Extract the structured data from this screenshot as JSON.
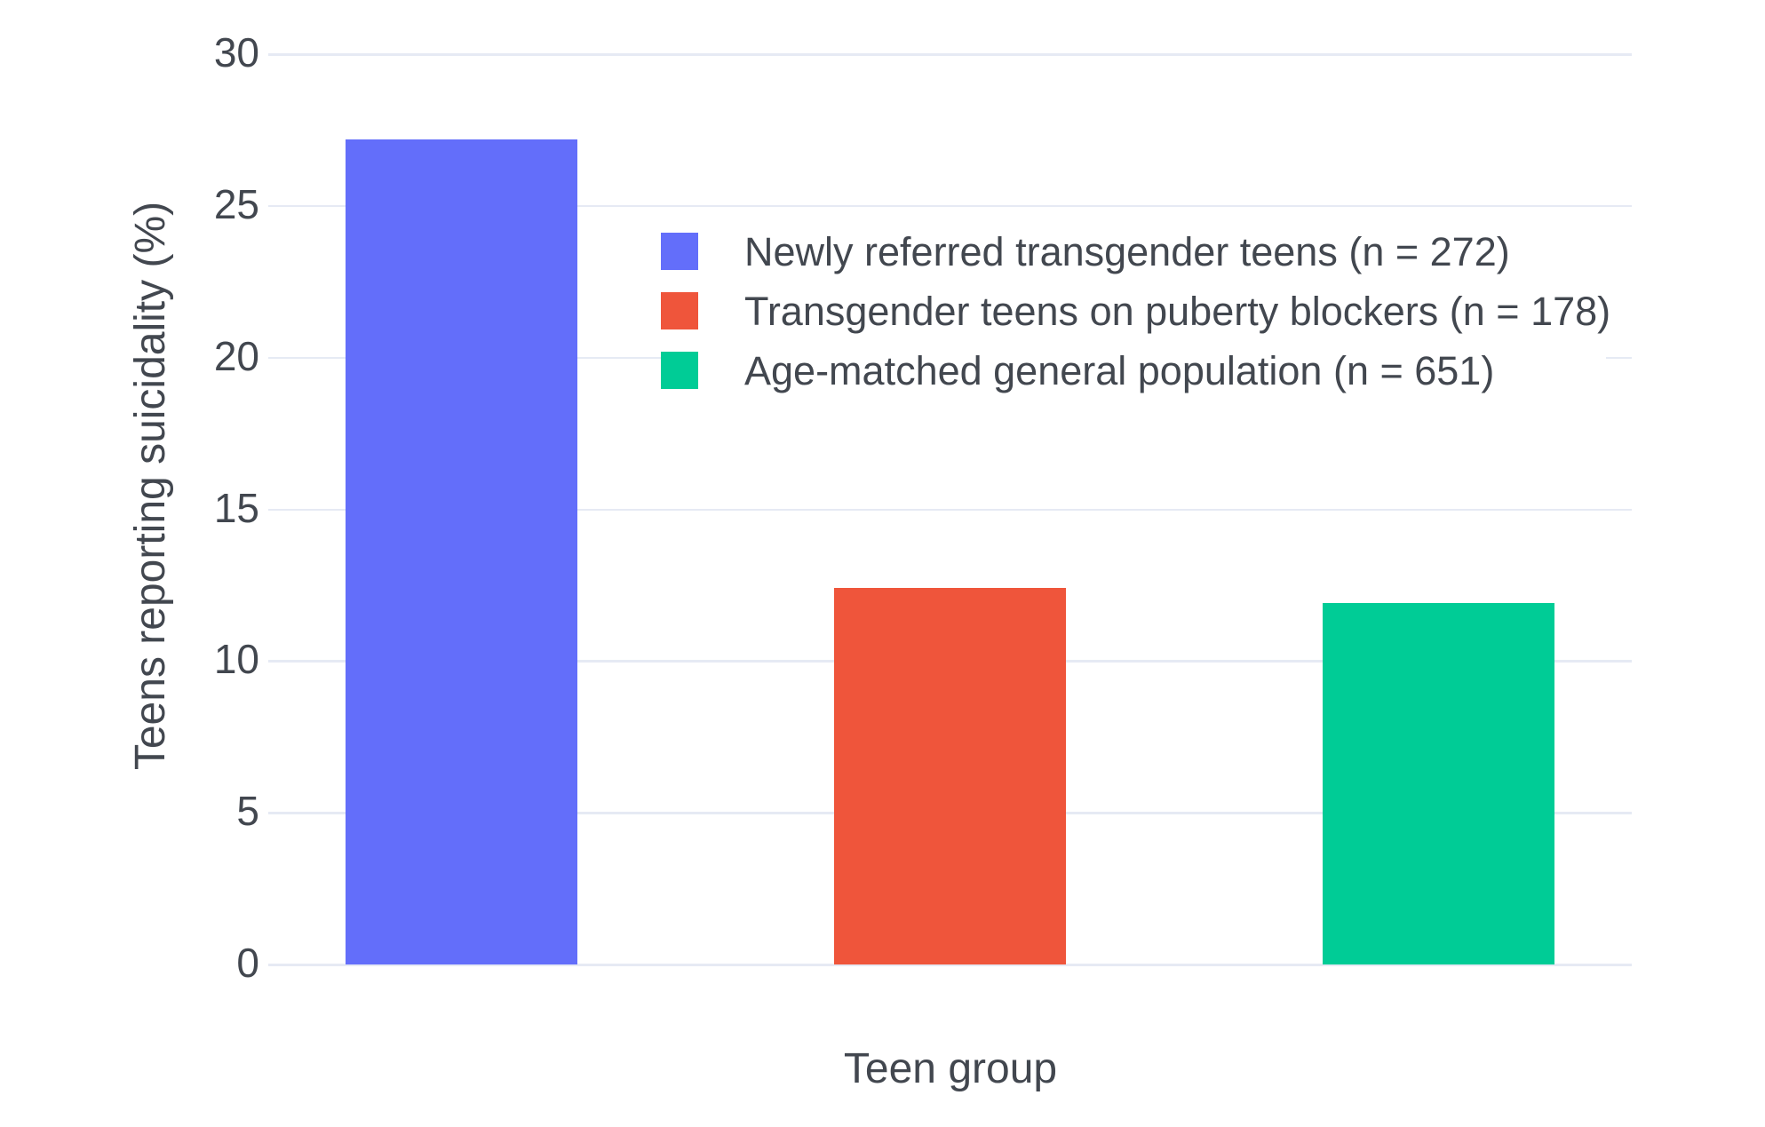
{
  "chart_data": {
    "type": "bar",
    "title": "",
    "xlabel": "Teen group",
    "ylabel": "Teens reporting suicidality (%)",
    "ylim": [
      0,
      30
    ],
    "yticks": [
      0,
      5,
      10,
      15,
      20,
      25,
      30
    ],
    "grid": true,
    "legend_position": "inside top-center",
    "categories": [
      "Newly referred transgender teens (n = 272)",
      "Transgender teens on puberty blockers (n = 178)",
      "Age-matched general population (n = 651)"
    ],
    "values": [
      27.2,
      12.4,
      11.9
    ],
    "bar_colors": [
      "#636EFA",
      "#EF553B",
      "#00CC96"
    ],
    "legend": [
      {
        "label": "Newly referred transgender teens (n = 272)",
        "color": "#636EFA"
      },
      {
        "label": "Transgender teens on puberty blockers (n = 178)",
        "color": "#EF553B"
      },
      {
        "label": "Age-matched general population (n = 651)",
        "color": "#00CC96"
      }
    ]
  },
  "colors": {
    "background": "#FFFFFF",
    "gridline": "#E6EAF4",
    "text": "#42474F"
  }
}
